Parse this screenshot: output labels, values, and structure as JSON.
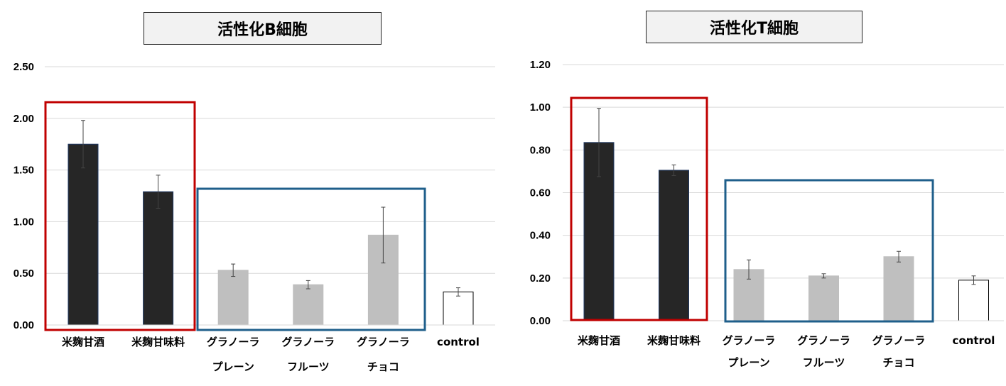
{
  "chart_data": [
    {
      "type": "bar",
      "title": "活性化B細胞",
      "categories": [
        [
          "米麹甘酒"
        ],
        [
          "米麹甘味料"
        ],
        [
          "グラノーラ",
          "プレーン"
        ],
        [
          "グラノーラ",
          "フルーツ"
        ],
        [
          "グラノーラ",
          "チョコ"
        ],
        [
          "control"
        ]
      ],
      "values": [
        1.75,
        1.29,
        0.53,
        0.39,
        0.87,
        0.32
      ],
      "errors": [
        0.23,
        0.16,
        0.06,
        0.04,
        0.27,
        0.04
      ],
      "bar_colors": [
        "#262626",
        "#262626",
        "#bfbfbf",
        "#bfbfbf",
        "#bfbfbf",
        "#ffffff"
      ],
      "ylim": [
        0,
        2.5
      ],
      "yticks": [
        "0.00",
        "0.50",
        "1.00",
        "1.50",
        "2.00",
        "2.50"
      ],
      "highlight_groups": [
        {
          "color": "#c00000",
          "categories": [
            0,
            1
          ]
        },
        {
          "color": "#1f5f8b",
          "categories": [
            2,
            3,
            4
          ]
        }
      ],
      "grid": true
    },
    {
      "type": "bar",
      "title": "活性化T細胞",
      "categories": [
        [
          "米麹甘酒"
        ],
        [
          "米麹甘味料"
        ],
        [
          "グラノーラ",
          "プレーン"
        ],
        [
          "グラノーラ",
          "フルーツ"
        ],
        [
          "グラノーラ",
          "チョコ"
        ],
        [
          "control"
        ]
      ],
      "values": [
        0.835,
        0.705,
        0.24,
        0.21,
        0.3,
        0.19
      ],
      "errors": [
        0.16,
        0.025,
        0.045,
        0.01,
        0.025,
        0.02
      ],
      "bar_colors": [
        "#262626",
        "#262626",
        "#bfbfbf",
        "#bfbfbf",
        "#bfbfbf",
        "#ffffff"
      ],
      "ylim": [
        0,
        1.2
      ],
      "yticks": [
        "0.00",
        "0.20",
        "0.40",
        "0.60",
        "0.80",
        "1.00",
        "1.20"
      ],
      "highlight_groups": [
        {
          "color": "#c00000",
          "categories": [
            0,
            1
          ]
        },
        {
          "color": "#1f5f8b",
          "categories": [
            2,
            3,
            4
          ]
        }
      ],
      "grid": true
    }
  ]
}
